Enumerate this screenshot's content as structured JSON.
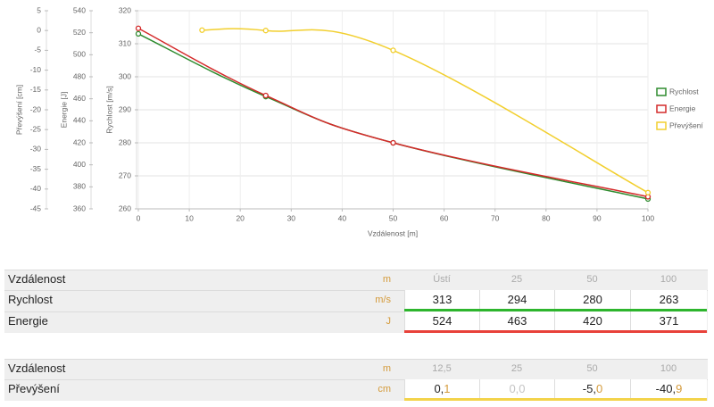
{
  "chart_data": {
    "type": "line",
    "xlabel": "Vzdálenost [m]",
    "xlim": [
      0,
      100
    ],
    "xticks": [
      0,
      10,
      20,
      30,
      40,
      50,
      60,
      70,
      80,
      90,
      100
    ],
    "ylabel": "Rychlost [m/s]",
    "ylim": [
      260,
      320
    ],
    "yticks": [
      260,
      270,
      280,
      290,
      300,
      310,
      320
    ],
    "y2label": "Energie [J]",
    "y2lim": [
      360,
      540
    ],
    "y2ticks": [
      360,
      380,
      400,
      420,
      440,
      460,
      480,
      500,
      520,
      540
    ],
    "y3label": "Převýšení [cm]",
    "y3lim": [
      -45,
      5
    ],
    "y3ticks": [
      -45,
      -40,
      -35,
      -30,
      -25,
      -20,
      -15,
      -10,
      -5,
      0,
      5
    ],
    "grid": true,
    "legend": "right",
    "series": [
      {
        "name": "Rychlost",
        "color": "#2e8b2e",
        "axis": "y",
        "x": [
          0,
          25,
          50,
          100
        ],
        "values": [
          313,
          294,
          280,
          263
        ]
      },
      {
        "name": "Energie",
        "color": "#d42a2a",
        "axis": "y2",
        "x": [
          0,
          25,
          50,
          100
        ],
        "values": [
          524,
          463,
          420,
          371
        ]
      },
      {
        "name": "Převýšení",
        "color": "#f2cf2e",
        "axis": "y3",
        "x": [
          12.5,
          25,
          50,
          100
        ],
        "values": [
          0.1,
          0.0,
          -5.0,
          -40.9
        ]
      }
    ]
  },
  "tables": [
    {
      "header": {
        "label": "Vzdálenost",
        "unit": "m",
        "cells": [
          "Ústí",
          "25",
          "50",
          "100"
        ]
      },
      "rows": [
        {
          "label": "Rychlost",
          "unit": "m/s",
          "cells": [
            "313",
            "294",
            "280",
            "263"
          ],
          "color": "#2db52d"
        },
        {
          "label": "Energie",
          "unit": "J",
          "cells": [
            "524",
            "463",
            "420",
            "371"
          ],
          "color": "#e8413a"
        }
      ]
    },
    {
      "header": {
        "label": "Vzdálenost",
        "unit": "m",
        "cells": [
          "12,5",
          "25",
          "50",
          "100"
        ]
      },
      "rows": [
        {
          "label": "Převýšení",
          "unit": "cm",
          "cells": [
            "0,1",
            "0,0",
            "-5,0",
            "-40,9"
          ],
          "color": "#f3d34a",
          "muted_cells": [
            1
          ]
        }
      ]
    }
  ]
}
